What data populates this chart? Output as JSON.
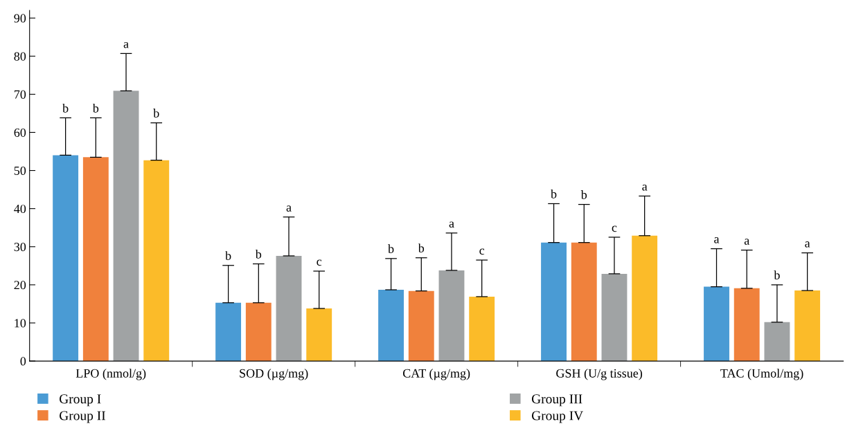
{
  "chart_data": {
    "type": "bar",
    "categories": [
      "LPO (nmol/g)",
      "SOD (µg/mg)",
      "CAT (µg/mg)",
      "GSH (U/g tissue)",
      "TAC (Umol/mg)"
    ],
    "series": [
      {
        "name": "Group I",
        "color": "#4a9bd4",
        "values": [
          54.0,
          15.3,
          18.7,
          31.1,
          19.5
        ],
        "errors": [
          [
            54.0,
            63.8
          ],
          [
            15.3,
            25.1
          ],
          [
            18.7,
            26.9
          ],
          [
            31.1,
            41.3
          ],
          [
            19.5,
            29.5
          ]
        ]
      },
      {
        "name": "Group II",
        "color": "#f0813c",
        "values": [
          53.5,
          15.3,
          18.4,
          31.1,
          19.1
        ],
        "errors": [
          [
            53.5,
            63.8
          ],
          [
            15.3,
            25.5
          ],
          [
            18.4,
            27.1
          ],
          [
            31.1,
            41.1
          ],
          [
            19.1,
            29.1
          ]
        ]
      },
      {
        "name": "Group III",
        "color": "#a0a3a4",
        "values": [
          70.9,
          27.6,
          23.8,
          22.9,
          10.2
        ],
        "errors": [
          [
            70.9,
            80.7
          ],
          [
            27.6,
            37.8
          ],
          [
            23.8,
            33.6
          ],
          [
            22.9,
            32.5
          ],
          [
            10.2,
            20.0
          ]
        ]
      },
      {
        "name": "Group IV",
        "color": "#fbbb29",
        "values": [
          52.7,
          13.8,
          16.9,
          32.9,
          18.5
        ],
        "errors": [
          [
            52.7,
            62.5
          ],
          [
            13.8,
            23.6
          ],
          [
            16.9,
            26.5
          ],
          [
            32.9,
            43.3
          ],
          [
            18.5,
            28.4
          ]
        ]
      }
    ],
    "annotations": [
      "b",
      "b",
      "a",
      "b",
      "b",
      "b",
      "a",
      "c",
      "b",
      "b",
      "a",
      "c",
      "b",
      "b",
      "c",
      "a",
      "a",
      "a",
      "b",
      "a"
    ],
    "ylim": [
      0,
      92
    ],
    "yticks": [
      0,
      10,
      20,
      30,
      40,
      50,
      60,
      70,
      80,
      90
    ],
    "grid": false,
    "legend": "bottom"
  }
}
